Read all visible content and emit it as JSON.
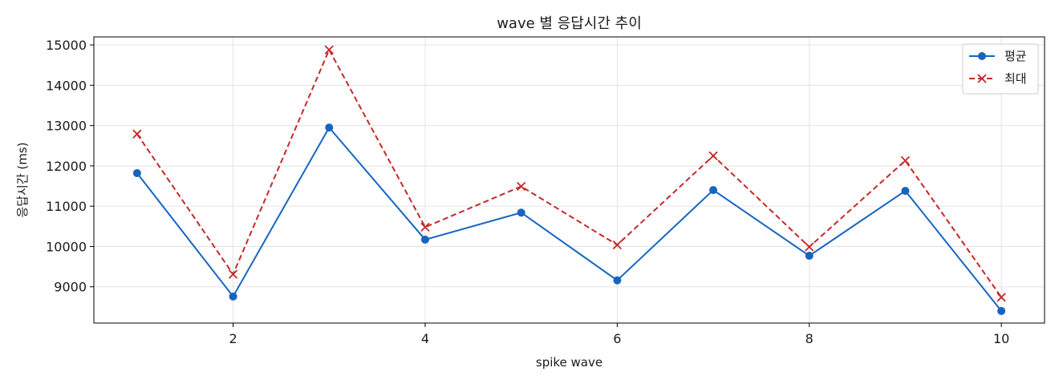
{
  "chart_data": {
    "type": "line",
    "title": "wave 별 응답시간 추이",
    "xlabel": "spike wave",
    "ylabel": "응답시간 (ms)",
    "x": [
      1,
      2,
      3,
      4,
      5,
      6,
      7,
      8,
      9,
      10
    ],
    "xlim": [
      0.55,
      10.45
    ],
    "ylim": [
      8100,
      15200
    ],
    "xticks": [
      2,
      4,
      6,
      8,
      10
    ],
    "yticks": [
      9000,
      10000,
      11000,
      12000,
      13000,
      14000,
      15000
    ],
    "grid": true,
    "legend_position": "top-right",
    "series": [
      {
        "name": "평균",
        "color": "#1565c0",
        "line_style": "solid",
        "marker": "circle",
        "values": [
          11820,
          8760,
          12950,
          10170,
          10840,
          9160,
          11400,
          9770,
          11380,
          8400
        ]
      },
      {
        "name": "최대",
        "color": "#c62828",
        "line_style": "dashed",
        "marker": "x",
        "values": [
          12790,
          9310,
          14880,
          10480,
          11490,
          10040,
          12250,
          9990,
          12130,
          8740
        ]
      }
    ]
  }
}
